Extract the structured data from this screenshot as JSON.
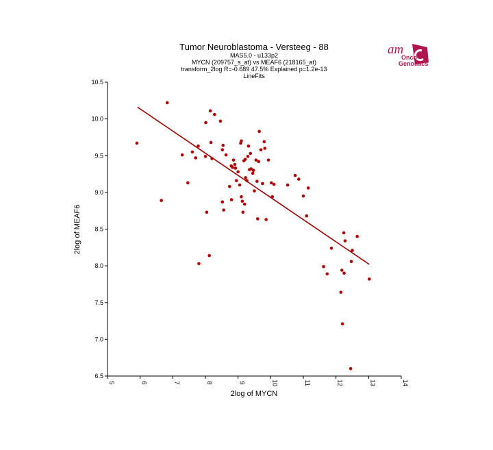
{
  "chart_data": {
    "type": "scatter",
    "title": "Tumor Neuroblastoma  - Versteeg - 88",
    "subtitle_lines": [
      "MAS5.0 - u133p2",
      "MYCN (209757_s_at) vs MEAF6 (218165_at)",
      "transform_2log R=-0.689 47.5% Explained p=1.2e-13",
      "LineFits"
    ],
    "xlabel": "2log of MYCN",
    "ylabel": "2log of MEAF6",
    "xlim": [
      5,
      14
    ],
    "ylim": [
      6.5,
      10.5
    ],
    "x_ticks": [
      "5",
      "6",
      "7",
      "8",
      "9",
      "10",
      "11",
      "12",
      "13",
      "14"
    ],
    "y_ticks": [
      "6.5",
      "7.0",
      "7.5",
      "8.0",
      "8.5",
      "9.0",
      "9.5",
      "10.0",
      "10.5"
    ],
    "point_color": "#b00000",
    "line_color": "#9b0000",
    "fit_line": {
      "x": [
        5.92,
        13.02
      ],
      "y": [
        10.16,
        8.02
      ]
    },
    "points": [
      [
        5.9,
        9.67
      ],
      [
        6.65,
        8.89
      ],
      [
        6.83,
        10.22
      ],
      [
        7.29,
        9.51
      ],
      [
        7.46,
        9.13
      ],
      [
        7.6,
        9.55
      ],
      [
        7.7,
        9.47
      ],
      [
        7.78,
        9.63
      ],
      [
        7.8,
        8.03
      ],
      [
        8.0,
        9.49
      ],
      [
        8.01,
        9.95
      ],
      [
        8.04,
        8.73
      ],
      [
        8.12,
        8.14
      ],
      [
        8.15,
        10.11
      ],
      [
        8.17,
        9.68
      ],
      [
        8.2,
        9.46
      ],
      [
        8.28,
        10.06
      ],
      [
        8.46,
        9.97
      ],
      [
        8.52,
        9.58
      ],
      [
        8.52,
        8.87
      ],
      [
        8.54,
        9.64
      ],
      [
        8.56,
        8.76
      ],
      [
        8.63,
        9.51
      ],
      [
        8.74,
        9.08
      ],
      [
        8.79,
        9.36
      ],
      [
        8.8,
        8.9
      ],
      [
        8.83,
        9.34
      ],
      [
        8.86,
        9.44
      ],
      [
        8.9,
        9.38
      ],
      [
        8.92,
        9.33
      ],
      [
        8.95,
        9.16
      ],
      [
        9.0,
        9.28
      ],
      [
        9.05,
        9.1
      ],
      [
        9.08,
        9.67
      ],
      [
        9.1,
        9.7
      ],
      [
        9.1,
        8.94
      ],
      [
        9.13,
        8.88
      ],
      [
        9.15,
        8.73
      ],
      [
        9.18,
        9.43
      ],
      [
        9.2,
        8.84
      ],
      [
        9.22,
        9.45
      ],
      [
        9.23,
        9.2
      ],
      [
        9.27,
        9.16
      ],
      [
        9.3,
        9.49
      ],
      [
        9.32,
        9.63
      ],
      [
        9.35,
        9.31
      ],
      [
        9.38,
        9.53
      ],
      [
        9.4,
        9.32
      ],
      [
        9.45,
        9.26
      ],
      [
        9.47,
        9.3
      ],
      [
        9.5,
        9.02
      ],
      [
        9.55,
        9.44
      ],
      [
        9.58,
        9.15
      ],
      [
        9.6,
        8.64
      ],
      [
        9.63,
        9.42
      ],
      [
        9.65,
        9.83
      ],
      [
        9.7,
        9.58
      ],
      [
        9.75,
        9.12
      ],
      [
        9.8,
        9.69
      ],
      [
        9.82,
        9.6
      ],
      [
        9.86,
        8.63
      ],
      [
        9.93,
        9.44
      ],
      [
        10.02,
        9.13
      ],
      [
        10.05,
        8.94
      ],
      [
        10.1,
        9.11
      ],
      [
        10.52,
        9.1
      ],
      [
        10.75,
        9.23
      ],
      [
        10.86,
        9.18
      ],
      [
        11.0,
        8.95
      ],
      [
        11.1,
        8.68
      ],
      [
        11.15,
        9.06
      ],
      [
        11.62,
        7.99
      ],
      [
        11.73,
        7.89
      ],
      [
        11.86,
        8.24
      ],
      [
        12.15,
        7.64
      ],
      [
        12.18,
        7.94
      ],
      [
        12.2,
        7.21
      ],
      [
        12.24,
        8.45
      ],
      [
        12.25,
        7.9
      ],
      [
        12.28,
        8.34
      ],
      [
        12.45,
        6.6
      ],
      [
        12.47,
        8.06
      ],
      [
        12.5,
        8.21
      ],
      [
        12.65,
        8.4
      ],
      [
        13.02,
        7.82
      ]
    ]
  },
  "logo": {
    "line1": "am",
    "line2": "Onco",
    "line3": "Genomics",
    "color": "#b0164d"
  }
}
